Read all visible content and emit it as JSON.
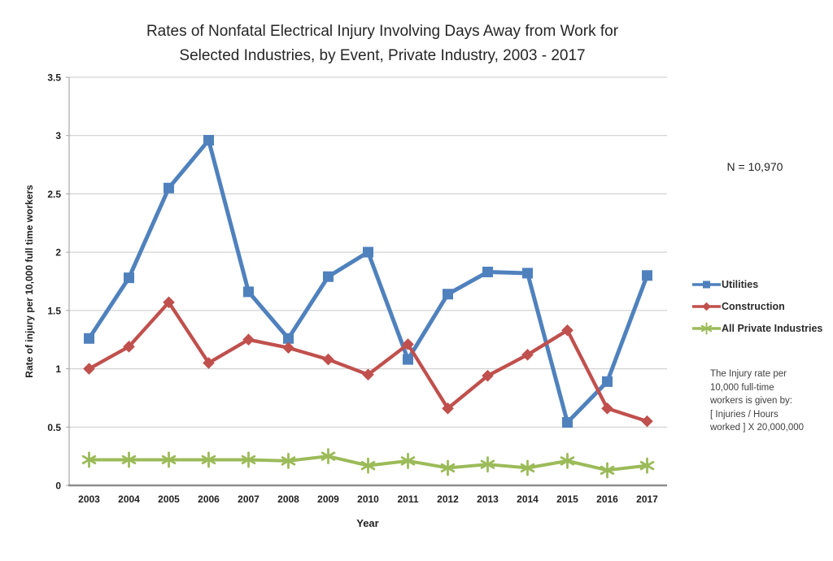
{
  "title": {
    "line1": "Rates of Nonfatal Electrical Injury Involving Days Away from Work for",
    "line2": "Selected Industries, by Event, Private Industry, 2003 - 2017"
  },
  "annotations": {
    "n_label": "N = 10,970",
    "note_lines": [
      "The Injury rate per",
      "10,000 full-time",
      "workers is given by:",
      "[ Injuries / Hours",
      "worked ] X 20,000,000"
    ]
  },
  "chart_data": {
    "type": "line",
    "title": "Rates of Nonfatal Electrical Injury Involving Days Away from Work for Selected Industries, by Event, Private Industry, 2003 - 2017",
    "xlabel": "Year",
    "ylabel": "Rate of injury per 10,000 full time workers",
    "ylim": [
      0,
      3.5
    ],
    "y_tick_step": 0.5,
    "grid": true,
    "legend_position": "right",
    "annotation": "N = 10,970",
    "categories": [
      "2003",
      "2004",
      "2005",
      "2006",
      "2007",
      "2008",
      "2009",
      "2010",
      "2011",
      "2012",
      "2013",
      "2014",
      "2015",
      "2016",
      "2017"
    ],
    "series": [
      {
        "name": "Utilities",
        "color": "#4F81BD",
        "marker": "square",
        "values": [
          1.26,
          1.78,
          2.55,
          2.96,
          1.66,
          1.26,
          1.79,
          2.0,
          1.08,
          1.64,
          1.83,
          1.82,
          0.54,
          0.89,
          1.8
        ]
      },
      {
        "name": "Construction",
        "color": "#C0504D",
        "marker": "diamond",
        "values": [
          1.0,
          1.19,
          1.57,
          1.05,
          1.25,
          1.18,
          1.08,
          0.95,
          1.21,
          0.66,
          0.94,
          1.12,
          1.33,
          0.66,
          0.55
        ]
      },
      {
        "name": "All Private Industries",
        "color": "#9BBB59",
        "marker": "asterisk",
        "values": [
          0.22,
          0.22,
          0.22,
          0.22,
          0.22,
          0.21,
          0.25,
          0.17,
          0.21,
          0.15,
          0.18,
          0.15,
          0.21,
          0.13,
          0.17
        ]
      }
    ]
  }
}
